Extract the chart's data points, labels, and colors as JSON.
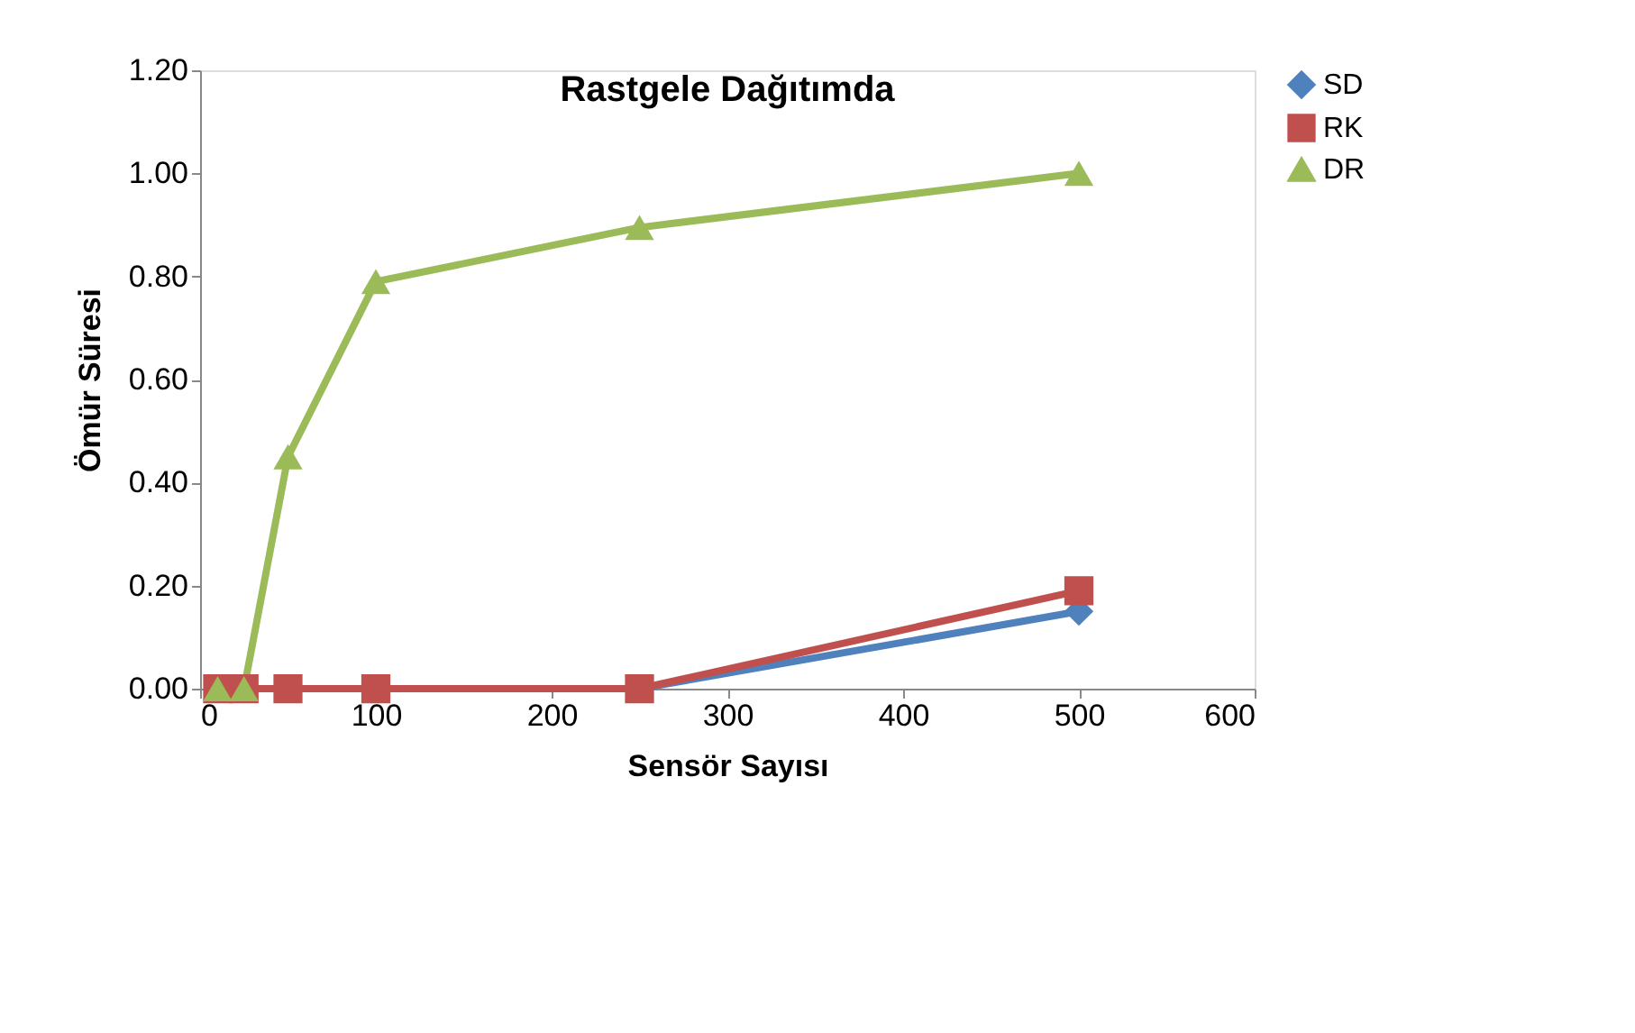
{
  "chart_data": {
    "type": "line",
    "title": "Rastgele Dağıtımda",
    "xlabel": "Sensör Sayısı",
    "ylabel": "Ömür Süresi",
    "x": [
      10,
      25,
      50,
      100,
      250,
      500
    ],
    "series": [
      {
        "name": "SD",
        "color": "#4f81bd",
        "marker": "diamond",
        "values": [
          null,
          null,
          null,
          null,
          0,
          0.15
        ]
      },
      {
        "name": "RK",
        "color": "#c0504d",
        "marker": "square",
        "values": [
          0,
          0,
          0,
          0,
          0,
          0.19
        ]
      },
      {
        "name": "DR",
        "color": "#9bbb59",
        "marker": "triangle",
        "values": [
          0,
          0,
          0.45,
          0.79,
          0.895,
          1.0
        ]
      }
    ],
    "xlim": [
      0,
      600
    ],
    "xticks": [
      0,
      100,
      200,
      300,
      400,
      500,
      600
    ],
    "ylim": [
      0,
      1.2
    ],
    "yticks": [
      {
        "value": 0,
        "label": "0.00"
      },
      {
        "value": 0.2,
        "label": "0.20"
      },
      {
        "value": 0.4,
        "label": "0.40"
      },
      {
        "value": 0.6,
        "label": "0.60"
      },
      {
        "value": 0.8,
        "label": "0.80"
      },
      {
        "value": 1.0,
        "label": "1.00"
      },
      {
        "value": 1.2,
        "label": "1.20"
      }
    ],
    "grid": false,
    "legend": "right",
    "line_style": "solid"
  }
}
